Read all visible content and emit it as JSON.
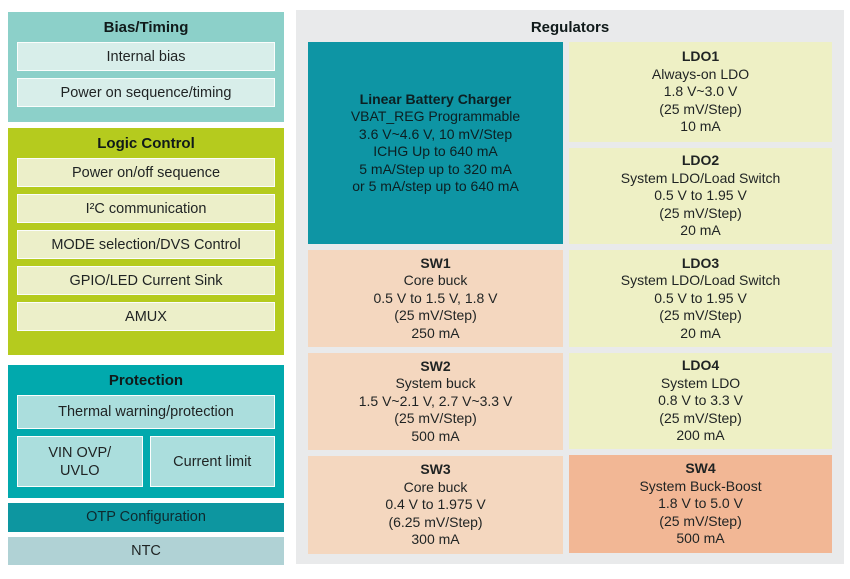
{
  "left_panel": {
    "bias_timing": {
      "title": "Bias/Timing",
      "rows": [
        "Internal bias",
        "Power on sequence/timing"
      ]
    },
    "logic_control": {
      "title": "Logic Control",
      "rows": [
        "Power on/off sequence",
        "I²C communication",
        "MODE selection/DVS Control",
        "GPIO/LED Current Sink",
        "AMUX"
      ]
    },
    "protection": {
      "title": "Protection",
      "thermal_row": "Thermal warning/protection",
      "vin_box_line1": "VIN OVP/",
      "vin_box_line2": "UVLO",
      "current_limit_box": "Current limit"
    },
    "otp_bar": "OTP Configuration",
    "ntc_bar": "NTC"
  },
  "regulators": {
    "title": "Regulators",
    "charger": {
      "title": "Linear Battery Charger",
      "lines": [
        "VBAT_REG Programmable",
        "3.6 V~4.6 V, 10 mV/Step",
        "ICHG Up to 640 mA",
        "5 mA/Step up to 320 mA",
        "or 5 mA/step up to 640 mA"
      ]
    },
    "sw1": {
      "title": "SW1",
      "lines": [
        "Core buck",
        "0.5 V to 1.5 V, 1.8 V",
        "(25 mV/Step)",
        "250 mA"
      ]
    },
    "sw2": {
      "title": "SW2",
      "lines": [
        "System buck",
        "1.5 V~2.1 V, 2.7 V~3.3 V",
        "(25 mV/Step)",
        "500 mA"
      ]
    },
    "sw3": {
      "title": "SW3",
      "lines": [
        "Core buck",
        "0.4 V to 1.975 V",
        "(6.25 mV/Step)",
        "300 mA"
      ]
    },
    "ldo1": {
      "title": "LDO1",
      "lines": [
        "Always-on LDO",
        "1.8 V~3.0 V",
        "(25 mV/Step)",
        "10 mA"
      ]
    },
    "ldo2": {
      "title": "LDO2",
      "lines": [
        "System LDO/Load Switch",
        "0.5 V to 1.95 V",
        "(25 mV/Step)",
        "20 mA"
      ]
    },
    "ldo3": {
      "title": "LDO3",
      "lines": [
        "System LDO/Load Switch",
        "0.5 V to 1.95 V",
        "(25 mV/Step)",
        "20 mA"
      ]
    },
    "ldo4": {
      "title": "LDO4",
      "lines": [
        "System LDO",
        "0.8 V to 3.3 V",
        "(25 mV/Step)",
        "200 mA"
      ]
    },
    "sw4": {
      "title": "SW4",
      "lines": [
        "System Buck-Boost",
        "1.8 V to 5.0 V",
        "(25 mV/Step)",
        "500 mA"
      ]
    }
  },
  "colors": {
    "bias_container": "#8cd0c9",
    "bias_row": "#d8eeea",
    "logic_container": "#b5cb1e",
    "logic_row": "#ecefc9",
    "protection_container": "#01a9ad",
    "protection_row": "#abdedd",
    "otp_bar": "#0d96a0",
    "ntc_bar": "#b0d2d5",
    "panel_background": "#e9eaeb",
    "charger_block": "#0e95a4",
    "ldo_block": "#eef0c5",
    "sw_block": "#f4d7bf",
    "sw4_block": "#f2b795",
    "text": "#1f2323"
  }
}
